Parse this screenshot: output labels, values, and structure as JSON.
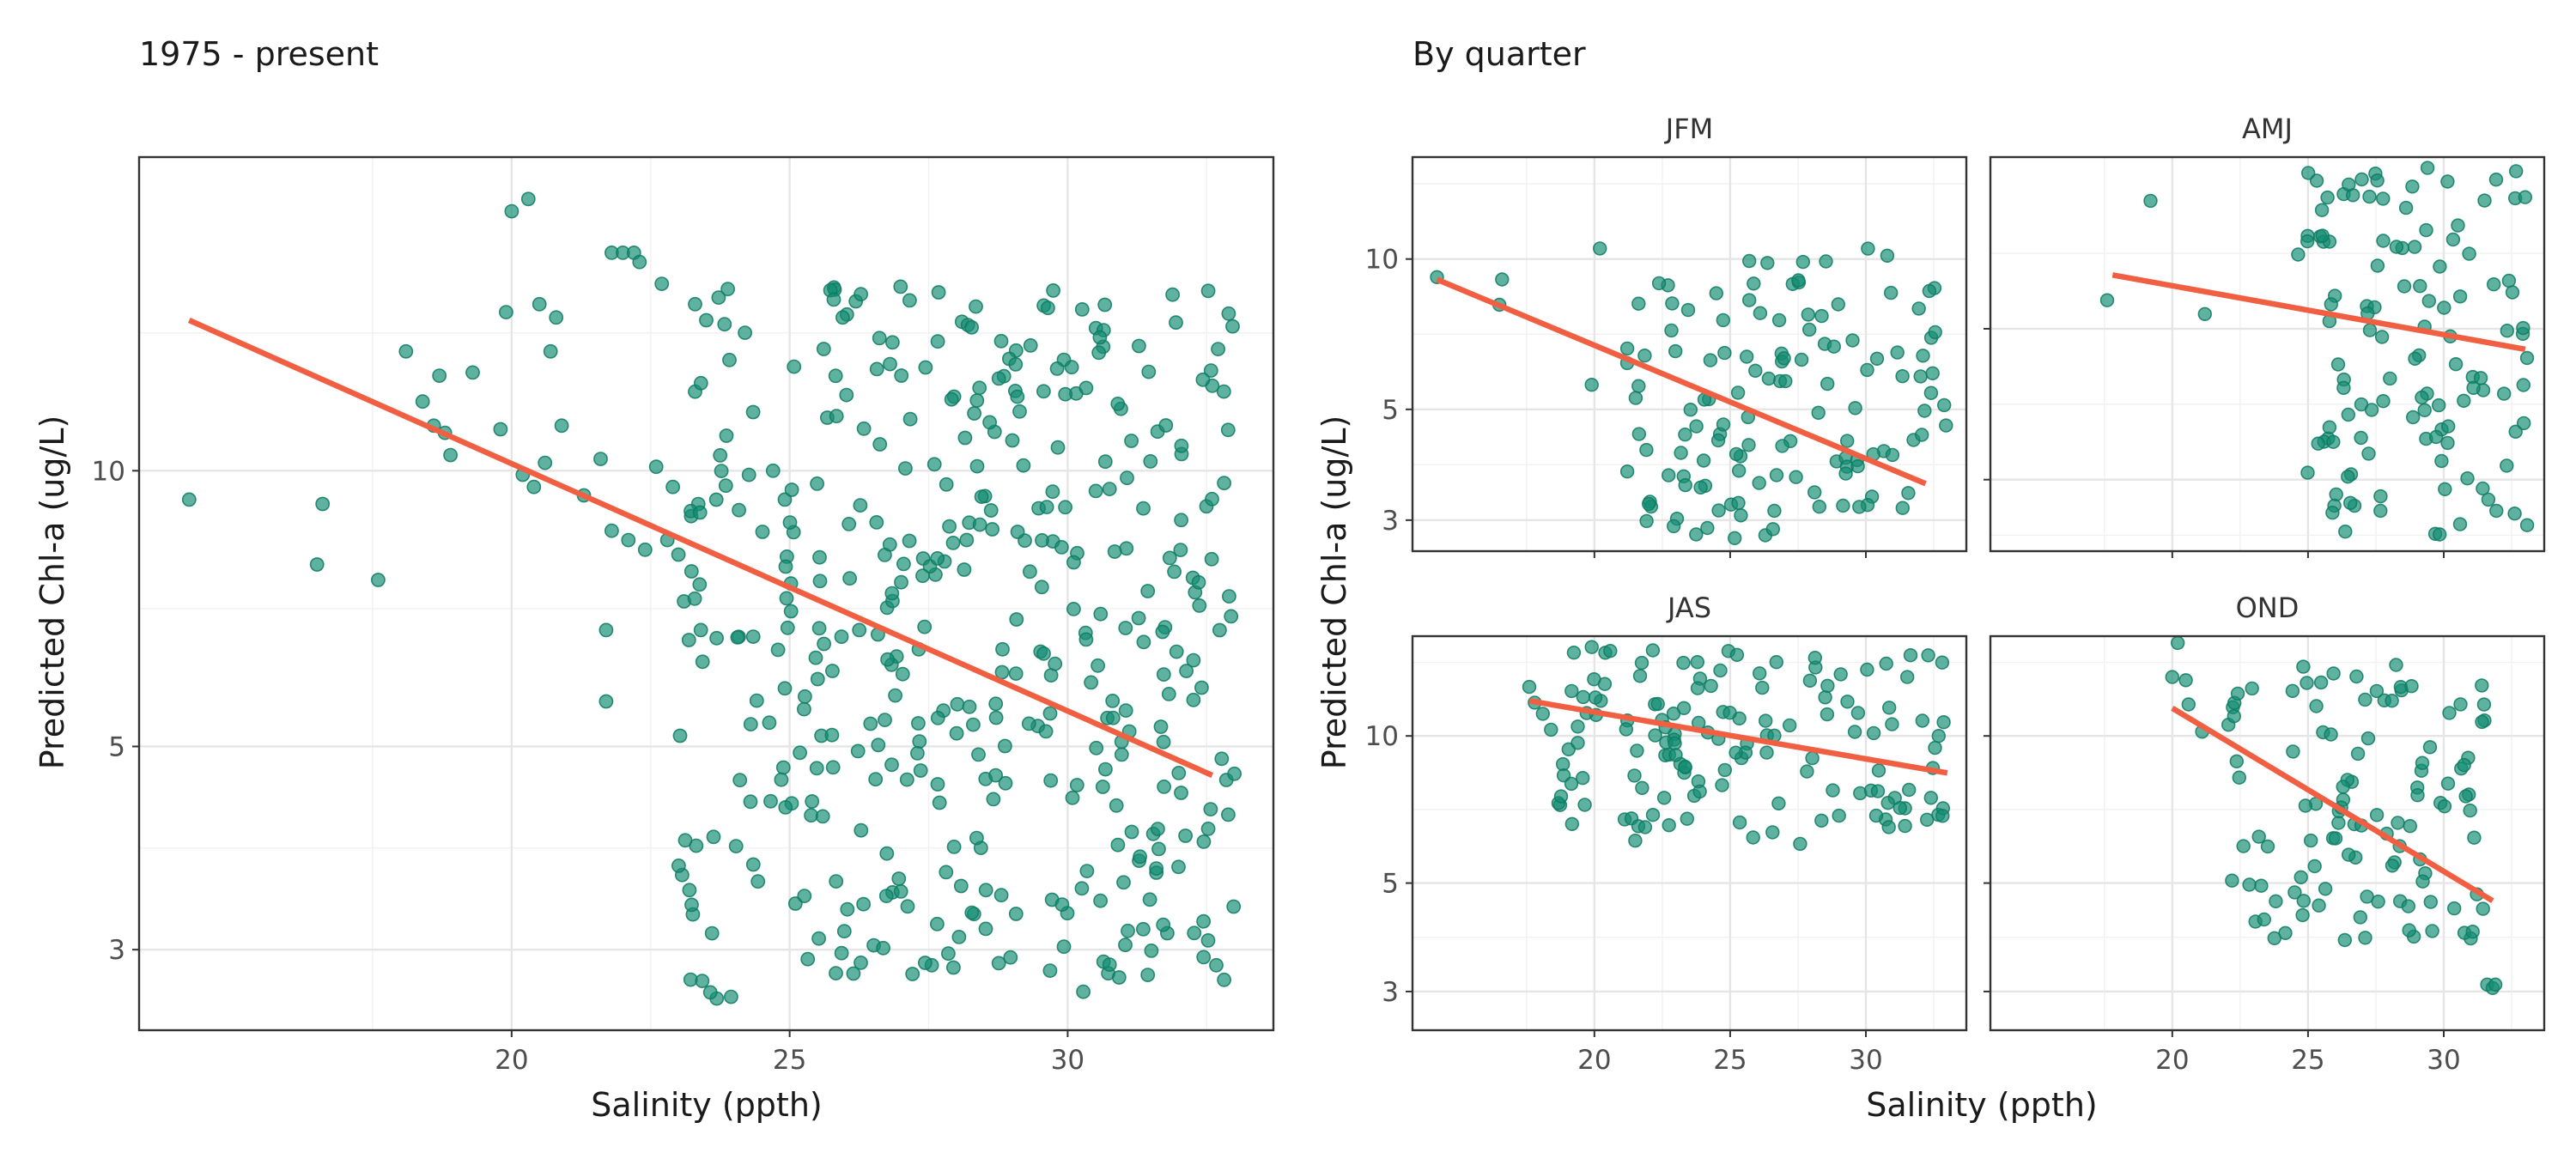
{
  "chart_data": [
    {
      "id": "overall",
      "type": "scatter",
      "title": "1975 - present",
      "xlabel": "Salinity (ppth)",
      "ylabel": "Predicted Chl-a (ug/L)",
      "xlim": [
        13.3,
        33.7
      ],
      "ylim": [
        2.45,
        22.0
      ],
      "yscale": "log",
      "xticks": [
        20,
        25,
        30
      ],
      "yticks": [
        3,
        5,
        10
      ],
      "ytick_labels": [
        "3",
        "5",
        "10"
      ],
      "grid": true,
      "trend_line": {
        "from": [
          14.2,
          14.6
        ],
        "to": [
          32.6,
          4.65
        ]
      },
      "seed": 11,
      "points": [
        [
          14.2,
          9.3
        ],
        [
          16.6,
          9.2
        ],
        [
          16.5,
          7.9
        ],
        [
          17.6,
          7.6
        ],
        [
          18.1,
          13.5
        ],
        [
          18.4,
          11.9
        ],
        [
          18.6,
          11.2
        ],
        [
          18.7,
          12.7
        ],
        [
          18.9,
          10.4
        ],
        [
          18.8,
          11.0
        ],
        [
          19.3,
          12.8
        ],
        [
          19.8,
          11.1
        ],
        [
          19.9,
          14.9
        ],
        [
          20.0,
          19.2
        ],
        [
          20.3,
          19.8
        ],
        [
          20.5,
          15.2
        ],
        [
          20.6,
          10.2
        ],
        [
          20.7,
          13.5
        ],
        [
          20.8,
          14.7
        ],
        [
          20.9,
          11.2
        ],
        [
          20.2,
          9.9
        ],
        [
          20.4,
          9.6
        ],
        [
          21.3,
          9.4
        ],
        [
          21.6,
          10.3
        ],
        [
          21.8,
          17.3
        ],
        [
          22.0,
          17.3
        ],
        [
          22.2,
          17.3
        ],
        [
          22.3,
          16.9
        ],
        [
          22.7,
          16.0
        ],
        [
          21.7,
          5.6
        ],
        [
          21.7,
          6.7
        ],
        [
          21.8,
          8.6
        ],
        [
          22.1,
          8.4
        ],
        [
          22.4,
          8.2
        ],
        [
          22.6,
          10.1
        ],
        [
          22.8,
          8.4
        ],
        [
          22.9,
          9.6
        ],
        [
          23.0,
          8.1
        ],
        [
          23.1,
          7.2
        ],
        [
          23.3,
          15.2
        ],
        [
          23.5,
          14.6
        ],
        [
          23.3,
          12.2
        ]
      ],
      "cloud": {
        "n": 420,
        "xrange": [
          23.0,
          33.0
        ],
        "ymin": 2.65,
        "ymax": 16.0
      }
    },
    {
      "id": "JFM",
      "type": "scatter",
      "strip_label": "JFM",
      "xlim": [
        13.3,
        33.7
      ],
      "ylim": [
        2.6,
        16.0
      ],
      "yscale": "log",
      "xticks": [
        20,
        25,
        30
      ],
      "yticks": [
        3,
        5,
        10
      ],
      "ytick_labels": [
        "3",
        "5",
        "10"
      ],
      "grid": true,
      "trend_line": {
        "from": [
          14.2,
          9.1
        ],
        "to": [
          32.2,
          3.55
        ]
      },
      "seed": 21,
      "points": [
        [
          14.2,
          9.2
        ],
        [
          16.5,
          8.1
        ],
        [
          16.6,
          9.1
        ],
        [
          19.9,
          5.6
        ],
        [
          20.2,
          10.5
        ]
      ],
      "cloud": {
        "n": 130,
        "xrange": [
          21.2,
          33.0
        ],
        "ymin": 2.75,
        "ymax": 10.5
      }
    },
    {
      "id": "AMJ",
      "type": "scatter",
      "strip_label": "AMJ",
      "xlim": [
        13.3,
        33.7
      ],
      "ylim": [
        3.6,
        22.0
      ],
      "yscale": "log",
      "xticks": [
        20,
        25,
        30
      ],
      "yticks": [
        3,
        5,
        10
      ],
      "ytick_labels": [
        "3",
        "5",
        "10"
      ],
      "grid": true,
      "trend_line": {
        "from": [
          17.8,
          12.8
        ],
        "to": [
          33.0,
          9.1
        ]
      },
      "seed": 31,
      "points": [
        [
          17.6,
          11.4
        ],
        [
          19.2,
          18.0
        ],
        [
          21.2,
          10.7
        ]
      ],
      "cloud": {
        "n": 120,
        "xrange": [
          24.6,
          33.1
        ],
        "ymin": 3.8,
        "ymax": 21.0
      }
    },
    {
      "id": "JAS",
      "type": "scatter",
      "strip_label": "JAS",
      "xlim": [
        13.3,
        33.7
      ],
      "ylim": [
        2.5,
        16.0
      ],
      "yscale": "log",
      "xticks": [
        20,
        25,
        30
      ],
      "yticks": [
        3,
        5,
        10
      ],
      "ytick_labels": [
        "3",
        "5",
        "10"
      ],
      "grid": true,
      "trend_line": {
        "from": [
          17.6,
          11.8
        ],
        "to": [
          33.0,
          8.4
        ]
      },
      "seed": 41,
      "points": [
        [
          17.6,
          12.6
        ],
        [
          17.8,
          11.7
        ],
        [
          18.1,
          11.1
        ],
        [
          18.4,
          10.3
        ],
        [
          19.9,
          15.2
        ],
        [
          20.4,
          14.8
        ]
      ],
      "cloud": {
        "n": 140,
        "xrange": [
          18.5,
          33.0
        ],
        "ymin": 6.0,
        "ymax": 15.0
      }
    },
    {
      "id": "OND",
      "type": "scatter",
      "strip_label": "OND",
      "xlim": [
        13.3,
        33.7
      ],
      "ylim": [
        2.5,
        16.0
      ],
      "yscale": "log",
      "xticks": [
        20,
        25,
        30
      ],
      "yticks": [
        3,
        5,
        10
      ],
      "ytick_labels": [
        "3",
        "5",
        "10"
      ],
      "grid": true,
      "trend_line": {
        "from": [
          20.0,
          11.4
        ],
        "to": [
          31.8,
          4.6
        ]
      },
      "seed": 51,
      "points": [
        [
          20.0,
          13.2
        ],
        [
          20.2,
          15.5
        ],
        [
          20.5,
          13.0
        ],
        [
          20.6,
          11.6
        ],
        [
          21.1,
          10.2
        ],
        [
          31.6,
          3.1
        ],
        [
          31.8,
          3.05
        ],
        [
          31.9,
          3.1
        ]
      ],
      "cloud": {
        "n": 110,
        "xrange": [
          22.0,
          31.5
        ],
        "ymin": 3.8,
        "ymax": 14.0
      }
    }
  ],
  "layout_text": {
    "left_title": "1975 - present",
    "right_title": "By quarter",
    "left_ylabel": "Predicted Chl-a (ug/L)",
    "left_xlabel": "Salinity (ppth)",
    "right_ylabel": "Predicted Chl-a (ug/L)",
    "right_xlabel": "Salinity (ppth)"
  },
  "colors": {
    "points": "#138e73",
    "trend": "#f15f42",
    "frame": "#333333",
    "grid": "#e5e5e5"
  }
}
